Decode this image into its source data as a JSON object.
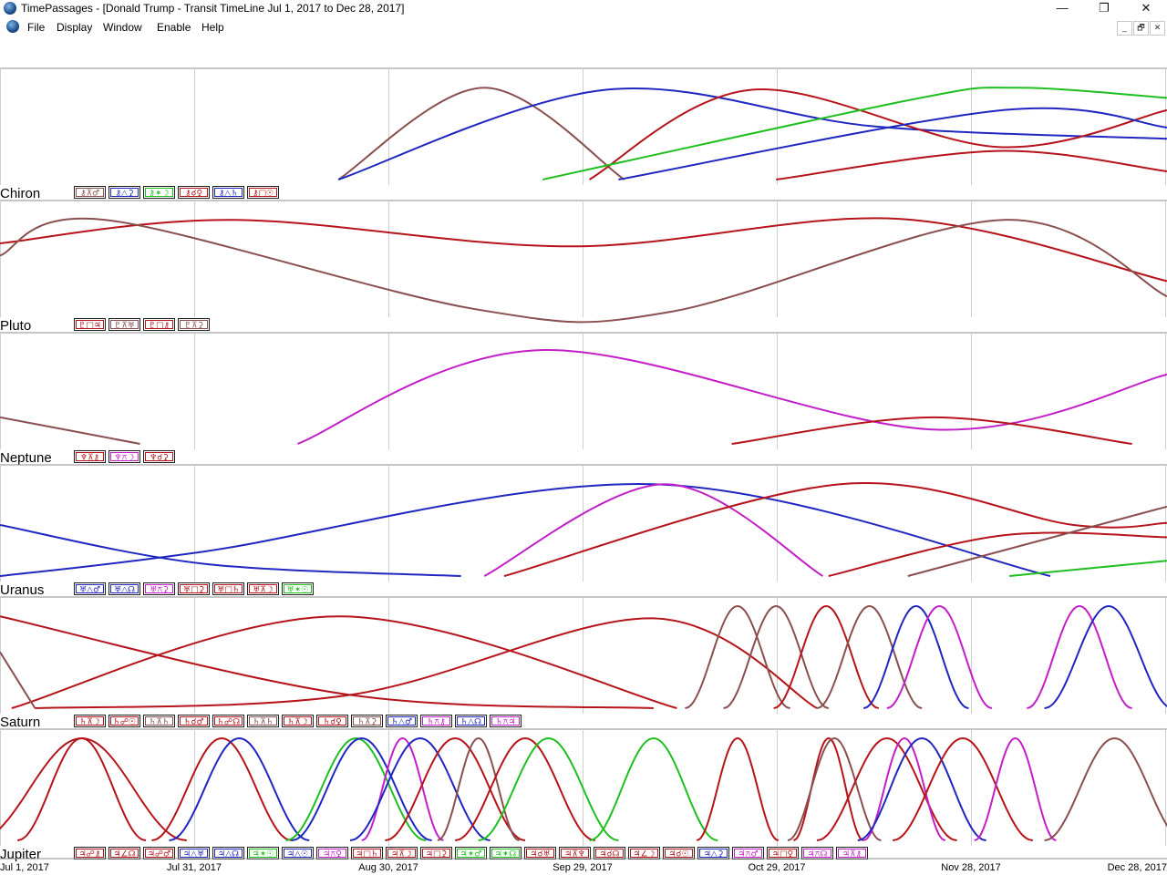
{
  "window": {
    "title": "TimePassages - [Donald Trump - Transit TimeLine Jul 1, 2017 to Dec 28, 2017]",
    "controls": {
      "minimize": "—",
      "restore": "❐",
      "close": "✕"
    }
  },
  "menu": {
    "items": [
      "File",
      "Display",
      "Window",
      "Enable",
      "Help"
    ],
    "mdi": {
      "minimize": "_",
      "restore": "🗗",
      "close": "✕"
    }
  },
  "colors": {
    "conjunction": "#b5141a",
    "hard": "#b5141a",
    "trine": "#1f27c0",
    "sextile": "#1fbf1f",
    "quincunx": "#c21fc8",
    "minor": "#8a4f4f",
    "grid": "#cfcfcf",
    "divider": "#8c8c8c"
  },
  "chart_data": {
    "type": "line",
    "x_axis": {
      "start": "Jul 1, 2017",
      "end": "Dec 28, 2017",
      "labels": [
        "Jul 1, 2017",
        "Jul 31, 2017",
        "Aug 30, 2017",
        "Sep 29, 2017",
        "Oct 29, 2017",
        "Nov 28, 2017",
        "Dec 28, 2017"
      ]
    },
    "y_axis": {
      "min": 0,
      "max": 1
    },
    "panels": [
      {
        "planet": "Chiron",
        "aspects": [
          {
            "glyph": "⚷⊼♂",
            "color": "minor"
          },
          {
            "glyph": "⚷△⚳",
            "color": "trine"
          },
          {
            "glyph": "⚷✶☽",
            "color": "sextile"
          },
          {
            "glyph": "⚷☌♀",
            "color": "hard"
          },
          {
            "glyph": "⚷△♄",
            "color": "trine"
          },
          {
            "glyph": "⚷□☉",
            "color": "hard"
          }
        ],
        "curves": [
          {
            "color": "minor",
            "points": [
              [
                0.29,
                0
              ],
              [
                0.415,
                0.9
              ],
              [
                0.535,
                0
              ]
            ]
          },
          {
            "color": "trine",
            "points": [
              [
                0.29,
                0
              ],
              [
                0.52,
                0.88
              ],
              [
                0.75,
                0.52
              ],
              [
                1.0,
                0.4
              ]
            ]
          },
          {
            "color": "hard",
            "points": [
              [
                0.505,
                0
              ],
              [
                0.645,
                0.88
              ],
              [
                0.855,
                0.32
              ],
              [
                1.0,
                0.68
              ]
            ]
          },
          {
            "color": "sextile",
            "points": [
              [
                0.465,
                0
              ],
              [
                0.78,
                0.78
              ],
              [
                0.87,
                0.9
              ],
              [
                1.0,
                0.8
              ]
            ]
          },
          {
            "color": "trine",
            "points": [
              [
                0.53,
                0
              ],
              [
                0.86,
                0.68
              ],
              [
                1.0,
                0.51
              ]
            ]
          },
          {
            "color": "hard",
            "points": [
              [
                0.665,
                0
              ],
              [
                0.855,
                0.28
              ],
              [
                1.0,
                0.08
              ]
            ]
          }
        ]
      },
      {
        "planet": "Pluto",
        "aspects": [
          {
            "glyph": "♇□♃",
            "color": "hard"
          },
          {
            "glyph": "♇⊼♅",
            "color": "minor"
          },
          {
            "glyph": "♇□⚷",
            "color": "hard"
          },
          {
            "glyph": "♇⊼⚳",
            "color": "minor"
          }
        ],
        "curves": [
          {
            "color": "hard",
            "points": [
              [
                0,
                0.67
              ],
              [
                0.2,
                0.9
              ],
              [
                0.49,
                0.64
              ],
              [
                0.77,
                0.91
              ],
              [
                1.0,
                0.3
              ]
            ]
          },
          {
            "color": "minor",
            "points": [
              [
                0,
                0.55
              ],
              [
                0.09,
                0.9
              ],
              [
                0.41,
                0.02
              ],
              [
                0.575,
                0.0
              ],
              [
                0.86,
                0.9
              ],
              [
                1.0,
                0.15
              ]
            ]
          }
        ]
      },
      {
        "planet": "Neptune",
        "aspects": [
          {
            "glyph": "♆⊼⚷",
            "color": "hard"
          },
          {
            "glyph": "♆⚻☽",
            "color": "quincunx"
          },
          {
            "glyph": "♆☌⚳",
            "color": "hard"
          }
        ],
        "curves": [
          {
            "color": "minor",
            "points": [
              [
                0,
                0.26
              ],
              [
                0.12,
                0
              ]
            ]
          },
          {
            "color": "quincunx",
            "points": [
              [
                0.255,
                0
              ],
              [
                0.465,
                0.92
              ],
              [
                0.8,
                0.14
              ],
              [
                1.0,
                0.68
              ]
            ]
          },
          {
            "color": "hard",
            "points": [
              [
                0.627,
                0
              ],
              [
                0.8,
                0.26
              ],
              [
                0.97,
                0
              ]
            ]
          }
        ]
      },
      {
        "planet": "Uranus",
        "aspects": [
          {
            "glyph": "♅△♂",
            "color": "trine"
          },
          {
            "glyph": "♅△☊",
            "color": "trine"
          },
          {
            "glyph": "♅⚻⚳",
            "color": "quincunx"
          },
          {
            "glyph": "♅□⚳",
            "color": "hard"
          },
          {
            "glyph": "♅□♄",
            "color": "hard"
          },
          {
            "glyph": "♅⊼☽",
            "color": "hard"
          },
          {
            "glyph": "♅✶☉",
            "color": "sextile"
          }
        ],
        "curves": [
          {
            "color": "trine",
            "points": [
              [
                0,
                0.5
              ],
              [
                0.175,
                0.12
              ],
              [
                0.395,
                0
              ]
            ]
          },
          {
            "color": "trine",
            "points": [
              [
                0,
                0
              ],
              [
                0.175,
                0.24
              ],
              [
                0.56,
                0.9
              ],
              [
                0.9,
                0
              ]
            ]
          },
          {
            "color": "quincunx",
            "points": [
              [
                0.415,
                0
              ],
              [
                0.57,
                0.9
              ],
              [
                0.705,
                0
              ]
            ]
          },
          {
            "color": "hard",
            "points": [
              [
                0.432,
                0
              ],
              [
                0.72,
                0.9
              ],
              [
                0.92,
                0.5
              ],
              [
                1.0,
                0.52
              ]
            ]
          },
          {
            "color": "hard",
            "points": [
              [
                0.71,
                0
              ],
              [
                0.86,
                0.4
              ],
              [
                1.0,
                0.38
              ]
            ]
          },
          {
            "color": "minor",
            "points": [
              [
                0.778,
                0
              ],
              [
                1.0,
                0.68
              ]
            ]
          },
          {
            "color": "sextile",
            "points": [
              [
                0.865,
                0
              ],
              [
                1.0,
                0.15
              ]
            ]
          }
        ]
      },
      {
        "planet": "Saturn",
        "aspects": [
          {
            "glyph": "♄⊼☽",
            "color": "hard"
          },
          {
            "glyph": "♄☍☉",
            "color": "hard"
          },
          {
            "glyph": "♄⊼♄",
            "color": "minor"
          },
          {
            "glyph": "♄☌♂",
            "color": "hard"
          },
          {
            "glyph": "♄☍☊",
            "color": "hard"
          },
          {
            "glyph": "♄⊼♄",
            "color": "minor"
          },
          {
            "glyph": "♄⊼☽",
            "color": "hard"
          },
          {
            "glyph": "♄☌♀",
            "color": "hard"
          },
          {
            "glyph": "♄⊼⚳",
            "color": "minor"
          },
          {
            "glyph": "♄△♂",
            "color": "trine"
          },
          {
            "glyph": "♄⚻⚷",
            "color": "quincunx"
          },
          {
            "glyph": "♄△☊",
            "color": "trine"
          },
          {
            "glyph": "♄⚻♃",
            "color": "quincunx"
          }
        ],
        "curves": [
          {
            "color": "hard",
            "points": [
              [
                0,
                0.9
              ],
              [
                0.3,
                0.13
              ],
              [
                0.56,
                0
              ]
            ]
          },
          {
            "color": "hard",
            "points": [
              [
                0.01,
                0
              ],
              [
                0.29,
                0.9
              ],
              [
                0.58,
                0
              ]
            ]
          },
          {
            "color": "minor",
            "points": [
              [
                0,
                0.55
              ],
              [
                0.03,
                0
              ]
            ]
          },
          {
            "color": "hard",
            "points": [
              [
                0.03,
                0
              ],
              [
                0.3,
                0.13
              ],
              [
                0.56,
                0.88
              ],
              [
                0.7,
                0
              ]
            ]
          }
        ],
        "bumps": [
          {
            "color": "minor",
            "center": 0.632,
            "width": 0.045
          },
          {
            "color": "minor",
            "center": 0.665,
            "width": 0.045
          },
          {
            "color": "hard",
            "center": 0.708,
            "width": 0.045
          },
          {
            "color": "minor",
            "center": 0.745,
            "width": 0.045
          },
          {
            "color": "trine",
            "center": 0.785,
            "width": 0.045
          },
          {
            "color": "quincunx",
            "center": 0.805,
            "width": 0.045
          },
          {
            "color": "quincunx",
            "center": 0.925,
            "width": 0.045
          },
          {
            "color": "trine",
            "center": 0.95,
            "width": 0.055
          }
        ]
      },
      {
        "planet": "Jupiter",
        "aspects": [
          {
            "glyph": "♃☍⚷",
            "color": "hard"
          },
          {
            "glyph": "♃∠☊",
            "color": "hard"
          },
          {
            "glyph": "♃☍♂",
            "color": "hard"
          },
          {
            "glyph": "♃△♅",
            "color": "trine"
          },
          {
            "glyph": "♃△☊",
            "color": "trine"
          },
          {
            "glyph": "♃✶☉",
            "color": "sextile"
          },
          {
            "glyph": "♃△☉",
            "color": "trine"
          },
          {
            "glyph": "♃⚻♀",
            "color": "quincunx"
          },
          {
            "glyph": "♃□♄",
            "color": "hard"
          },
          {
            "glyph": "♃⊼☽",
            "color": "hard"
          },
          {
            "glyph": "♃□⚳",
            "color": "hard"
          },
          {
            "glyph": "♃✶♂",
            "color": "sextile"
          },
          {
            "glyph": "♃✶☊",
            "color": "sextile"
          },
          {
            "glyph": "♃☌♅",
            "color": "hard"
          },
          {
            "glyph": "♃⊼♆",
            "color": "hard"
          },
          {
            "glyph": "♃☌☊",
            "color": "hard"
          },
          {
            "glyph": "♃∠☽",
            "color": "hard"
          },
          {
            "glyph": "♃☌☉",
            "color": "hard"
          },
          {
            "glyph": "♃△⚳",
            "color": "trine"
          },
          {
            "glyph": "♃⚻♂",
            "color": "quincunx"
          },
          {
            "glyph": "♃□♀",
            "color": "hard"
          },
          {
            "glyph": "♃⚻☊",
            "color": "quincunx"
          },
          {
            "glyph": "♃⊼⚷",
            "color": "quincunx"
          }
        ],
        "bumps": [
          {
            "color": "hard",
            "center": 0.07,
            "width": 0.09
          },
          {
            "color": "hard",
            "center": 0.07,
            "width": 0.055
          },
          {
            "color": "hard",
            "center": 0.19,
            "width": 0.06
          },
          {
            "color": "trine",
            "center": 0.205,
            "width": 0.06
          },
          {
            "color": "sextile",
            "center": 0.305,
            "width": 0.06
          },
          {
            "color": "trine",
            "center": 0.31,
            "width": 0.06
          },
          {
            "color": "quincunx",
            "center": 0.345,
            "width": 0.035
          },
          {
            "color": "trine",
            "center": 0.36,
            "width": 0.06
          },
          {
            "color": "hard",
            "center": 0.39,
            "width": 0.06
          },
          {
            "color": "minor",
            "center": 0.41,
            "width": 0.035
          },
          {
            "color": "hard",
            "center": 0.45,
            "width": 0.06
          },
          {
            "color": "sextile",
            "center": 0.47,
            "width": 0.06
          },
          {
            "color": "sextile",
            "center": 0.56,
            "width": 0.055
          },
          {
            "color": "hard",
            "center": 0.632,
            "width": 0.035
          },
          {
            "color": "hard",
            "center": 0.71,
            "width": 0.03
          },
          {
            "color": "minor",
            "center": 0.715,
            "width": 0.04
          },
          {
            "color": "hard",
            "center": 0.76,
            "width": 0.06
          },
          {
            "color": "quincunx",
            "center": 0.775,
            "width": 0.035
          },
          {
            "color": "trine",
            "center": 0.79,
            "width": 0.055
          },
          {
            "color": "hard",
            "center": 0.825,
            "width": 0.06
          },
          {
            "color": "quincunx",
            "center": 0.87,
            "width": 0.035
          },
          {
            "color": "minor",
            "center": 0.955,
            "width": 0.06
          }
        ]
      }
    ]
  }
}
